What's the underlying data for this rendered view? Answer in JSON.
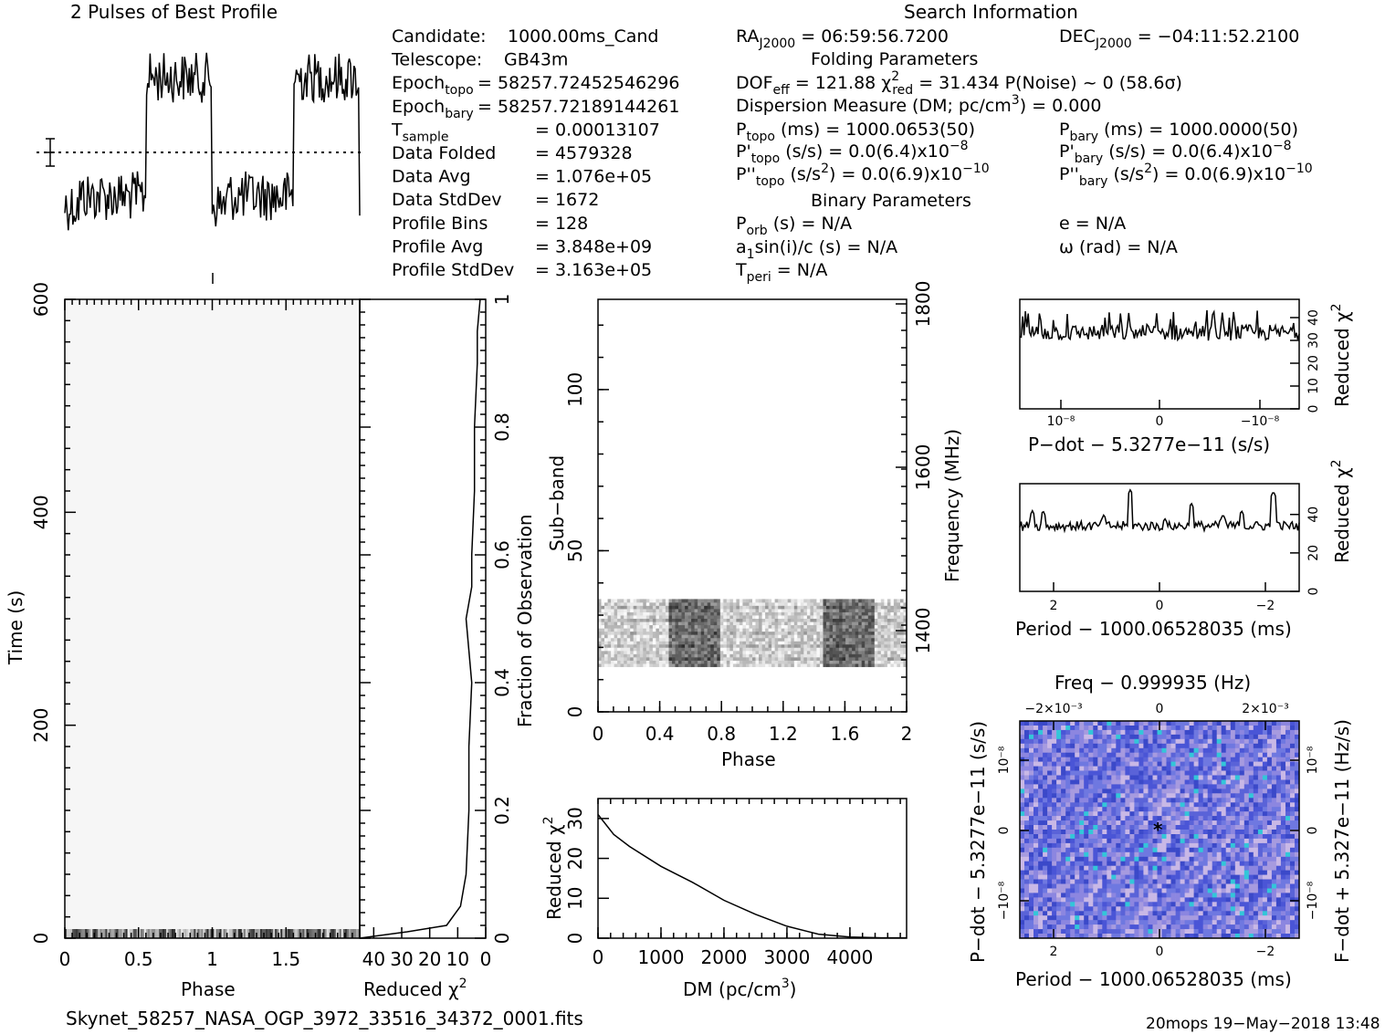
{
  "top": {
    "profile_title": "2 Pulses of Best Profile",
    "search_title": "Search Information",
    "folding_title": "Folding Parameters",
    "binary_title": "Binary Parameters"
  },
  "info_col1": [
    {
      "label": "Candidate:",
      "value": "1000.00ms_Cand"
    },
    {
      "label": "Telescope:",
      "value": "GB43m"
    },
    {
      "label": "Epoch_topo",
      "value": "= 58257.72452546296"
    },
    {
      "label": "Epoch_bary",
      "value": "= 58257.72189144261"
    },
    {
      "label": "T_sample",
      "value": "= 0.00013107"
    },
    {
      "label": "Data Folded",
      "value": "= 4579328"
    },
    {
      "label": "Data Avg",
      "value": "= 1.076e+05"
    },
    {
      "label": "Data StdDev",
      "value": "= 1672"
    },
    {
      "label": "Profile Bins",
      "value": "= 128"
    },
    {
      "label": "Profile Avg",
      "value": "= 3.848e+09"
    },
    {
      "label": "Profile StdDev",
      "value": "= 3.163e+05"
    }
  ],
  "search": {
    "ra": "RA_J2000 = 06:59:56.7200",
    "dec": "DEC_J2000 = −04:11:52.2100",
    "dof": "DOF_eff = 121.88",
    "chi2": "χ²_red = 31.434",
    "pnoise": "P(Noise) ~ 0    (58.6σ)",
    "dm": "Dispersion Measure (DM; pc/cm³) = 0.000",
    "ptopo": "P_topo (ms) = 1000.0653(50)",
    "pbary": "P_bary (ms) = 1000.0000(50)",
    "pdtopo": "P'_topo (s/s) = 0.0(6.4)x10⁻⁸",
    "pdbary": "P'_bary (s/s) = 0.0(6.4)x10⁻⁸",
    "pddtopo": "P''_topo (s/s²) = 0.0(6.9)x10⁻¹⁰",
    "pddbary": "P''_bary (s/s²) = 0.0(6.9)x10⁻¹⁰",
    "porb": "P_orb (s) = N/A",
    "ecc": "e = N/A",
    "asini": "a₁sin(i)/c (s) = N/A",
    "omega": "ω (rad) = N/A",
    "tperi": "T_peri = N/A"
  },
  "footer": {
    "filename": "Skynet_58257_NASA_OGP_3972_33516_34372_0001.fits",
    "stamp": "20mops 19−May−2018 13:48"
  },
  "colors": {
    "axis": "#000000",
    "grayscale_dark": "#111111",
    "pp_plane_blue": "#5a63d8",
    "pp_plane_cyan": "#33c6d9",
    "pp_plane_light": "#c9b8e6"
  },
  "chart_data": [
    {
      "id": "best_profile",
      "type": "line",
      "title": "2 Pulses of Best Profile",
      "x_label": "",
      "y_label": "",
      "xlim": [
        0,
        2
      ],
      "description_values": {
        "high_level": 1.0,
        "low_level": 0.0,
        "on_pulse_phase": [
          0.55,
          1.0
        ]
      }
    },
    {
      "id": "time_phase",
      "type": "heatmap",
      "xlabel": "Phase",
      "ylabel": "Time (s)",
      "xticks": [
        "0",
        "0.5",
        "1",
        "1.5"
      ],
      "yticks": [
        "0",
        "200",
        "400",
        "600"
      ],
      "xlim": [
        0,
        2
      ],
      "ylim": [
        0,
        600
      ]
    },
    {
      "id": "reduced_chi2_vs_time",
      "type": "line",
      "xlabel": "Reduced χ²",
      "ylabel": "Fraction of Observation",
      "xticks": [
        "40",
        "30",
        "20",
        "10",
        "0"
      ],
      "yticks": [
        "0",
        "0.2",
        "0.4",
        "0.6",
        "0.8",
        "1"
      ],
      "xlim": [
        45,
        0
      ],
      "ylim": [
        0,
        1
      ],
      "x": [
        45,
        28,
        14,
        9,
        7,
        6,
        6,
        5,
        6,
        7,
        5,
        5,
        4,
        4,
        3,
        3,
        2
      ],
      "y": [
        0.0,
        0.01,
        0.02,
        0.05,
        0.1,
        0.2,
        0.3,
        0.4,
        0.45,
        0.5,
        0.55,
        0.6,
        0.7,
        0.8,
        0.9,
        0.95,
        1.0
      ]
    },
    {
      "id": "subband_phase",
      "type": "heatmap",
      "xlabel": "Phase",
      "ylabel": "Sub−band",
      "y2label": "Frequency (MHz)",
      "xticks": [
        "0",
        "0.4",
        "0.8",
        "1.2",
        "1.6",
        "2"
      ],
      "yticks": [
        "0",
        "50",
        "100"
      ],
      "y2ticks": [
        "1400",
        "1600",
        "1800"
      ],
      "xlim": [
        0,
        2
      ],
      "ylim": [
        0,
        128
      ],
      "active_subbands": [
        14,
        35
      ]
    },
    {
      "id": "dm_chi2",
      "type": "line",
      "xlabel": "DM (pc/cm³)",
      "ylabel": "Reduced χ²",
      "xticks": [
        "0",
        "1000",
        "2000",
        "3000",
        "4000"
      ],
      "yticks": [
        "0",
        "10",
        "20",
        "30"
      ],
      "xlim": [
        0,
        4900
      ],
      "ylim": [
        0,
        35
      ],
      "x": [
        0,
        250,
        500,
        1000,
        1500,
        2000,
        2500,
        3000,
        3500,
        4000,
        4500,
        4900
      ],
      "y": [
        31,
        26,
        23,
        18,
        14,
        9.5,
        6,
        3,
        1,
        0.3,
        0.1,
        0.1
      ]
    },
    {
      "id": "pdot_chi2",
      "type": "line",
      "xlabel": "P−dot − 5.3277e−11 (s/s)",
      "ylabel": "Reduced χ²",
      "xticks": [
        "10⁻⁸",
        "0",
        "−10⁻⁸"
      ],
      "yticks": [
        "0",
        "10",
        "20",
        "30",
        "40"
      ],
      "ylim": [
        0,
        48
      ],
      "baseline": 32
    },
    {
      "id": "period_chi2",
      "type": "line",
      "xlabel": "Period − 1000.06528035 (ms)",
      "ylabel": "Reduced χ²",
      "xticks": [
        "2",
        "0",
        "−2"
      ],
      "yticks": [
        "0",
        "20",
        "40"
      ],
      "ylim": [
        0,
        56
      ],
      "baseline": 33,
      "peaks_x": [
        2.4,
        2.2,
        1.05,
        0.55,
        -0.1,
        -0.6,
        -1.2,
        -1.55,
        -2.15
      ],
      "peaks_y": [
        42,
        42,
        40,
        53,
        38,
        46,
        40,
        42,
        52
      ]
    },
    {
      "id": "pp_plane",
      "type": "heatmap",
      "title": "Freq − 0.999935 (Hz)",
      "xlabel": "Period − 1000.06528035 (ms)",
      "ylabel": "P−dot − 5.3277e−11 (s/s)",
      "y2label": "F−dot + 5.327e−11 (Hz/s)",
      "xticks": [
        "2",
        "0",
        "−2"
      ],
      "x2ticks": [
        "−2×10⁻³",
        "0",
        "2×10⁻³"
      ],
      "yticks": [
        "10⁻⁸",
        "0",
        "−10⁻⁸"
      ],
      "y2ticks": [
        "10⁻⁸",
        "0",
        "−10⁻⁸"
      ],
      "best_marker": [
        0,
        0
      ]
    }
  ]
}
